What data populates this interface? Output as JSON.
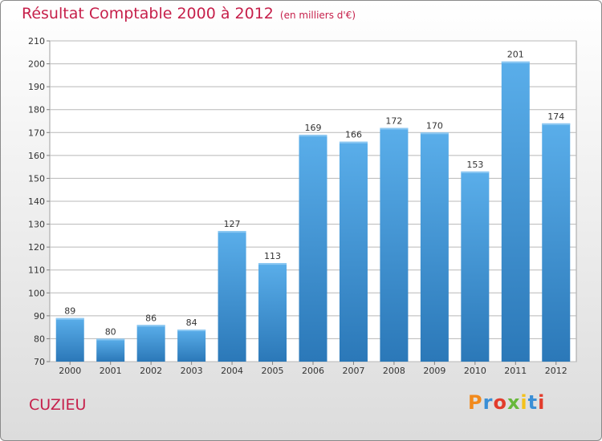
{
  "header": {
    "title": "Résultat Comptable 2000 à 2012",
    "unit": "(en milliers d'€)"
  },
  "footer": {
    "commune": "CUZIEU",
    "logo_text": "Proxiti",
    "logo_colors": [
      "#f28a1c",
      "#3a8fd6",
      "#e23c2c",
      "#67b83a",
      "#f4c21b",
      "#3a8fd6",
      "#e23c2c"
    ]
  },
  "colors": {
    "bar_light": "#5aaeea",
    "bar_dark": "#2b78b8",
    "grid": "#b8b8b8",
    "title": "#c61f4a"
  },
  "chart_data": {
    "type": "bar",
    "categories": [
      "2000",
      "2001",
      "2002",
      "2003",
      "2004",
      "2005",
      "2006",
      "2007",
      "2008",
      "2009",
      "2010",
      "2011",
      "2012"
    ],
    "values": [
      89,
      80,
      86,
      84,
      127,
      113,
      169,
      166,
      172,
      170,
      153,
      201,
      174
    ],
    "yticks": [
      70,
      80,
      90,
      100,
      110,
      120,
      130,
      140,
      150,
      160,
      170,
      180,
      190,
      200,
      210
    ],
    "ylim": [
      70,
      210
    ],
    "grid": true,
    "data_labels": true
  }
}
